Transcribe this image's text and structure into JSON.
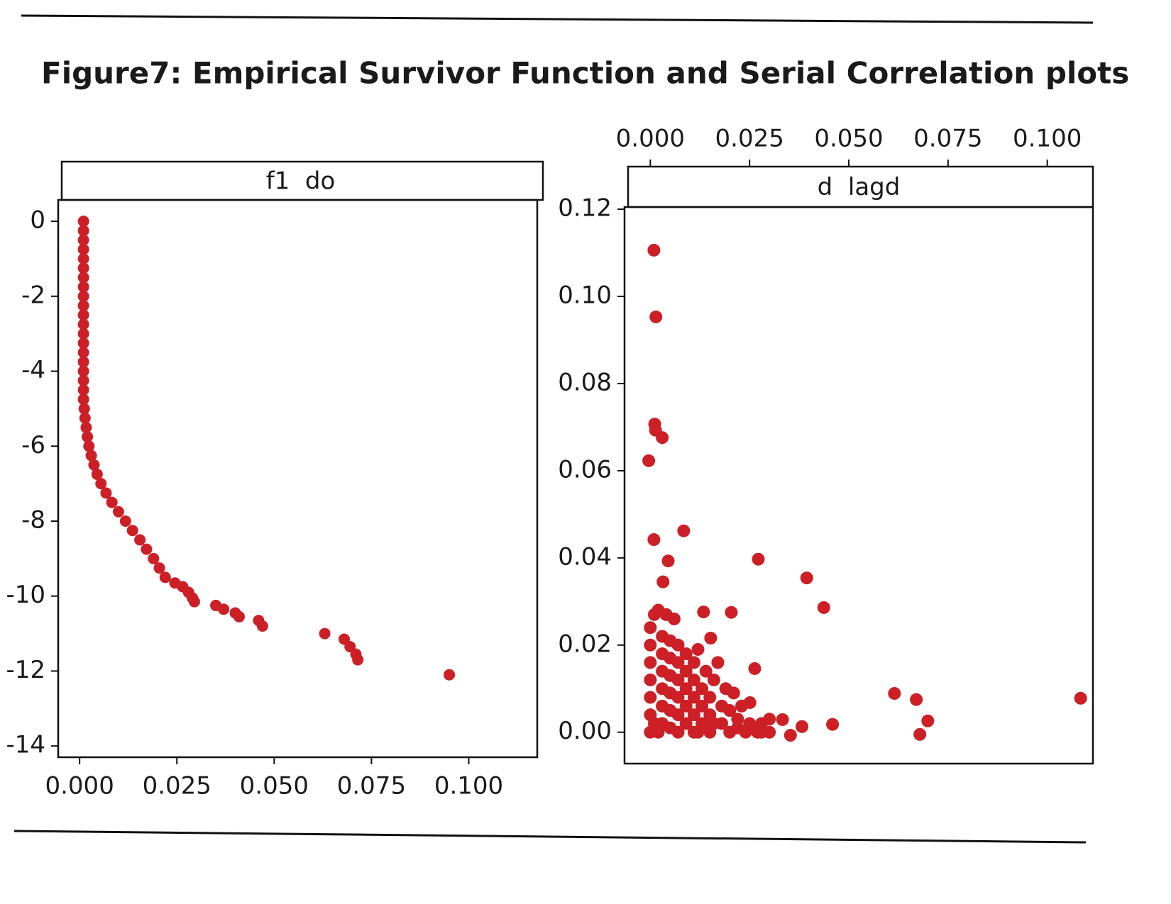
{
  "title": "Figure7: Empirical Survivor Function and Serial Correlation plots",
  "chart_data": [
    {
      "type": "scatter",
      "title": "f1  do",
      "color": "#cc1f26",
      "x_axis_position": "bottom",
      "xlim": [
        -0.0055,
        0.1176
      ],
      "ylim": [
        -14.3,
        0.57
      ],
      "xticks": [
        {
          "value": 0,
          "label": "0.000"
        },
        0.025,
        {
          "value": 0.05,
          "label": "0.050"
        },
        0.075,
        {
          "value": 0.1,
          "label": "0.100"
        }
      ],
      "yticks": [
        0,
        -2,
        -4,
        -6,
        -8,
        -10,
        -12,
        -14
      ],
      "x": [
        0.001,
        0.001,
        0.001,
        0.001,
        0.001,
        0.001,
        0.001,
        0.001,
        0.001,
        0.001,
        0.001,
        0.001,
        0.001,
        0.001,
        0.001,
        0.001,
        0.001,
        0.001,
        0.001,
        0.001,
        0.0012,
        0.0014,
        0.0017,
        0.002,
        0.0024,
        0.003,
        0.0037,
        0.0045,
        0.0055,
        0.0068,
        0.0083,
        0.01,
        0.0118,
        0.0136,
        0.0155,
        0.0172,
        0.019,
        0.0205,
        0.022,
        0.0245,
        0.0265,
        0.028,
        0.029,
        0.0295,
        0.035,
        0.037,
        0.04,
        0.041,
        0.046,
        0.047,
        0.063,
        0.068,
        0.0695,
        0.071,
        0.0715,
        0.095
      ],
      "values": [
        0,
        -0.25,
        -0.5,
        -0.75,
        -1,
        -1.25,
        -1.5,
        -1.75,
        -2,
        -2.25,
        -2.5,
        -2.75,
        -3,
        -3.25,
        -3.5,
        -3.75,
        -4,
        -4.25,
        -4.5,
        -4.75,
        -5,
        -5.25,
        -5.5,
        -5.75,
        -6,
        -6.25,
        -6.5,
        -6.75,
        -7,
        -7.25,
        -7.5,
        -7.75,
        -8,
        -8.25,
        -8.5,
        -8.75,
        -9,
        -9.25,
        -9.5,
        -9.65,
        -9.75,
        -9.9,
        -10.05,
        -10.15,
        -10.25,
        -10.35,
        -10.45,
        -10.55,
        -10.65,
        -10.8,
        -11,
        -11.15,
        -11.35,
        -11.55,
        -11.7,
        -12.1
      ]
    },
    {
      "type": "scatter",
      "title": "d  lagd",
      "color": "#cc1f26",
      "x_axis_position": "top",
      "xlim": [
        -0.0065,
        0.1115
      ],
      "ylim": [
        -0.0072,
        0.1205
      ],
      "xticks": [
        {
          "value": 0,
          "label": "0.000"
        },
        0.025,
        {
          "value": 0.05,
          "label": "0.050"
        },
        0.075,
        {
          "value": 0.1,
          "label": "0.100"
        }
      ],
      "yticks": [
        {
          "value": 0,
          "label": "0.00"
        },
        0.02,
        0.04,
        0.06,
        0.08,
        {
          "value": 0.1,
          "label": "0.10"
        },
        0.12
      ],
      "x": [
        0.0009,
        0.0014,
        0.0011,
        0.0013,
        0.003,
        -0.0004,
        0.0009,
        0.0084,
        0.0045,
        0.0272,
        0.0394,
        0.0032,
        0.0437,
        0.0134,
        0.0204,
        0.0152,
        0.0263,
        0.0615,
        0.067,
        0.1084,
        0.0699,
        0.0679,
        0.0459,
        0.0333,
        0.0382,
        0.0353,
        0.0251,
        0.028,
        0,
        0,
        0,
        0,
        0,
        0,
        0,
        0.001,
        0.002,
        0.003,
        0.003,
        0.003,
        0.003,
        0.003,
        0.003,
        0.004,
        0.005,
        0.005,
        0.005,
        0.005,
        0.005,
        0.005,
        0.006,
        0.007,
        0.007,
        0.007,
        0.007,
        0.007,
        0.007,
        0.009,
        0.009,
        0.009,
        0.009,
        0.009,
        0.011,
        0.011,
        0.011,
        0.011,
        0.011,
        0.012,
        0.013,
        0.013,
        0.013,
        0.014,
        0.015,
        0.015,
        0.015,
        0.016,
        0.017,
        0.018,
        0.018,
        0.019,
        0.02,
        0.02,
        0.021,
        0.022,
        0.023,
        0.024,
        0.025,
        0.027,
        0.028,
        0.03,
        0.03,
        0.002,
        0.001,
        0.012,
        0.016,
        0.022
      ],
      "values": [
        0.1106,
        0.0953,
        0.0707,
        0.0693,
        0.0676,
        0.0623,
        0.0442,
        0.0462,
        0.0393,
        0.0397,
        0.0354,
        0.0345,
        0.0286,
        0.0276,
        0.0275,
        0.0216,
        0.0146,
        0.0089,
        0.0075,
        0.0078,
        0.0026,
        -0.0005,
        0.0018,
        0.0029,
        0.0013,
        -0.0007,
        0.0068,
        0,
        0,
        0.004,
        0.008,
        0.012,
        0.016,
        0.02,
        0.024,
        0.027,
        0.028,
        0.002,
        0.006,
        0.01,
        0.014,
        0.018,
        0.022,
        0.027,
        0.001,
        0.005,
        0.009,
        0.013,
        0.017,
        0.021,
        0.026,
        0,
        0.004,
        0.008,
        0.012,
        0.016,
        0.02,
        0.002,
        0.006,
        0.01,
        0.014,
        0.018,
        0,
        0.004,
        0.008,
        0.012,
        0.016,
        0.019,
        0.002,
        0.006,
        0.01,
        0.014,
        0,
        0.004,
        0.008,
        0.012,
        0.016,
        0.002,
        0.006,
        0.01,
        0,
        0.005,
        0.009,
        0.001,
        0.006,
        0,
        0.002,
        0,
        0.002,
        0,
        0.003,
        0,
        0.002,
        0,
        0.002,
        0.003
      ]
    }
  ]
}
